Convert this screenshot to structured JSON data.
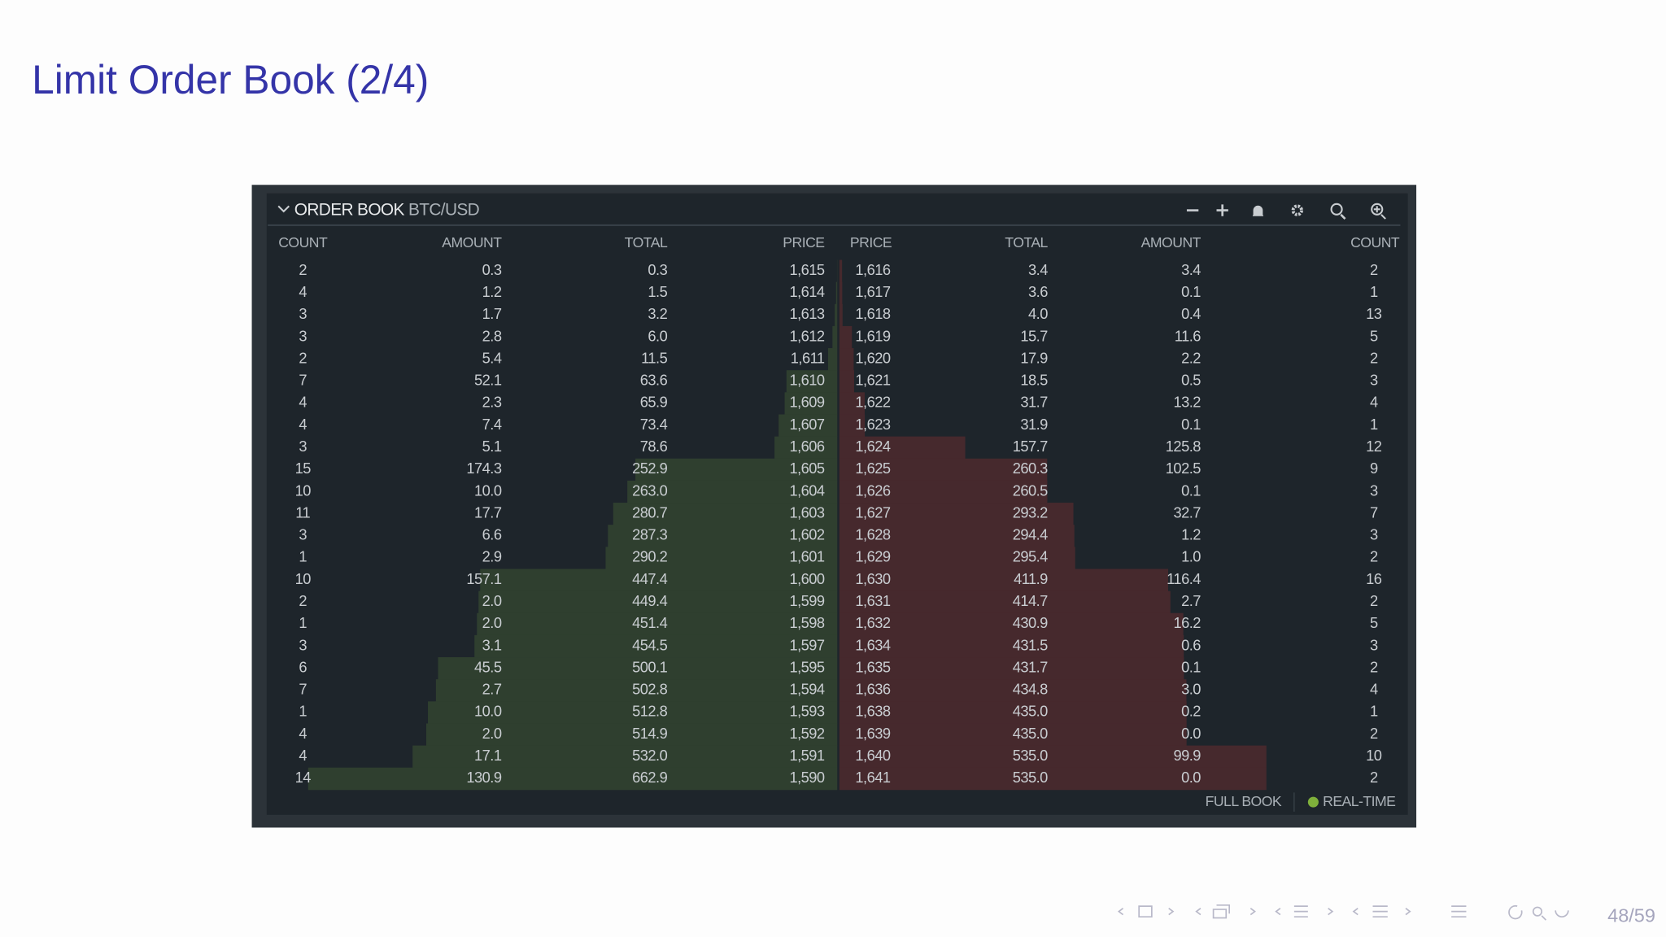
{
  "slide": {
    "title": "Limit Order Book (2/4)",
    "page": "48/59"
  },
  "order_book": {
    "title": "ORDER BOOK",
    "pair": "BTC/USD",
    "bid_headers": [
      "COUNT",
      "AMOUNT",
      "TOTAL",
      "PRICE"
    ],
    "ask_headers": [
      "PRICE",
      "TOTAL",
      "AMOUNT",
      "COUNT"
    ],
    "bids": [
      [
        "2",
        "0.3",
        "0.3",
        "1,615"
      ],
      [
        "4",
        "1.2",
        "1.5",
        "1,614"
      ],
      [
        "3",
        "1.7",
        "3.2",
        "1,613"
      ],
      [
        "3",
        "2.8",
        "6.0",
        "1,612"
      ],
      [
        "2",
        "5.4",
        "11.5",
        "1,611"
      ],
      [
        "7",
        "52.1",
        "63.6",
        "1,610"
      ],
      [
        "4",
        "2.3",
        "65.9",
        "1,609"
      ],
      [
        "4",
        "7.4",
        "73.4",
        "1,607"
      ],
      [
        "3",
        "5.1",
        "78.6",
        "1,606"
      ],
      [
        "15",
        "174.3",
        "252.9",
        "1,605"
      ],
      [
        "10",
        "10.0",
        "263.0",
        "1,604"
      ],
      [
        "11",
        "17.7",
        "280.7",
        "1,603"
      ],
      [
        "3",
        "6.6",
        "287.3",
        "1,602"
      ],
      [
        "1",
        "2.9",
        "290.2",
        "1,601"
      ],
      [
        "10",
        "157.1",
        "447.4",
        "1,600"
      ],
      [
        "2",
        "2.0",
        "449.4",
        "1,599"
      ],
      [
        "1",
        "2.0",
        "451.4",
        "1,598"
      ],
      [
        "3",
        "3.1",
        "454.5",
        "1,597"
      ],
      [
        "6",
        "45.5",
        "500.1",
        "1,595"
      ],
      [
        "7",
        "2.7",
        "502.8",
        "1,594"
      ],
      [
        "1",
        "10.0",
        "512.8",
        "1,593"
      ],
      [
        "4",
        "2.0",
        "514.9",
        "1,592"
      ],
      [
        "4",
        "17.1",
        "532.0",
        "1,591"
      ],
      [
        "14",
        "130.9",
        "662.9",
        "1,590"
      ]
    ],
    "asks": [
      [
        "1,616",
        "3.4",
        "3.4",
        "2"
      ],
      [
        "1,617",
        "3.6",
        "0.1",
        "1"
      ],
      [
        "1,618",
        "4.0",
        "0.4",
        "13"
      ],
      [
        "1,619",
        "15.7",
        "11.6",
        "5"
      ],
      [
        "1,620",
        "17.9",
        "2.2",
        "2"
      ],
      [
        "1,621",
        "18.5",
        "0.5",
        "3"
      ],
      [
        "1,622",
        "31.7",
        "13.2",
        "4"
      ],
      [
        "1,623",
        "31.9",
        "0.1",
        "1"
      ],
      [
        "1,624",
        "157.7",
        "125.8",
        "12"
      ],
      [
        "1,625",
        "260.3",
        "102.5",
        "9"
      ],
      [
        "1,626",
        "260.5",
        "0.1",
        "3"
      ],
      [
        "1,627",
        "293.2",
        "32.7",
        "7"
      ],
      [
        "1,628",
        "294.4",
        "1.2",
        "3"
      ],
      [
        "1,629",
        "295.4",
        "1.0",
        "2"
      ],
      [
        "1,630",
        "411.9",
        "116.4",
        "16"
      ],
      [
        "1,631",
        "414.7",
        "2.7",
        "2"
      ],
      [
        "1,632",
        "430.9",
        "16.2",
        "5"
      ],
      [
        "1,634",
        "431.5",
        "0.6",
        "3"
      ],
      [
        "1,635",
        "431.7",
        "0.1",
        "2"
      ],
      [
        "1,636",
        "434.8",
        "3.0",
        "4"
      ],
      [
        "1,638",
        "435.0",
        "0.2",
        "1"
      ],
      [
        "1,639",
        "435.0",
        "0.0",
        "2"
      ],
      [
        "1,640",
        "535.0",
        "99.9",
        "10"
      ],
      [
        "1,641",
        "535.0",
        "0.0",
        "2"
      ]
    ],
    "footer": [
      "FULL BOOK",
      "REAL-TIME"
    ]
  }
}
